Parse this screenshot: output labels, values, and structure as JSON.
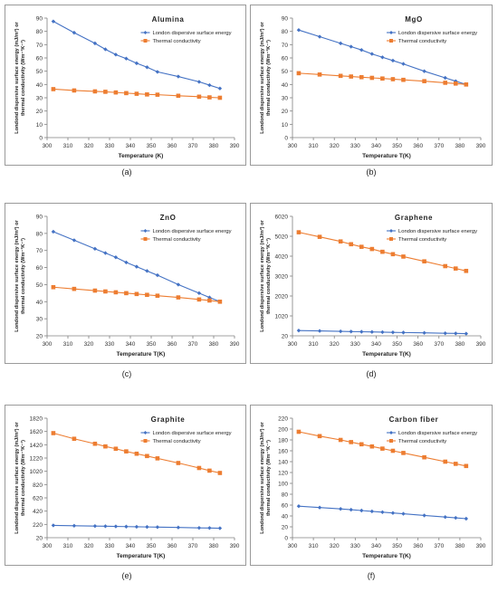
{
  "chart_data": [
    {
      "type": "line",
      "title": "Alumina",
      "caption": "(a)",
      "xlabel": "Temperature (K)",
      "ylabel": "Londond dispersive surface energy (mJ/m²) or thermal conductivity (Wm⁻¹K⁻¹)",
      "xlim": [
        300,
        390
      ],
      "xticks": [
        "300",
        "310",
        "320",
        "330",
        "340",
        "350",
        "360",
        "370",
        "380",
        "390"
      ],
      "ylim": [
        0,
        90
      ],
      "yticks": [
        "0",
        "10",
        "20",
        "30",
        "40",
        "50",
        "60",
        "70",
        "80",
        "90"
      ],
      "legend": "top-right",
      "grid": false,
      "x": [
        303,
        313,
        323,
        328,
        333,
        338,
        343,
        348,
        353,
        363,
        373,
        378,
        383
      ],
      "series": [
        {
          "name": "London dispersive surface energy",
          "color": "#4472C4",
          "marker": "diamond",
          "values": [
            87.5,
            79,
            71,
            66.5,
            62.5,
            59.5,
            56,
            53,
            49.5,
            46,
            42,
            39.5,
            37
          ]
        },
        {
          "name": "Thermal conductivity",
          "color": "#ED7D31",
          "marker": "square",
          "values": [
            36.5,
            35.5,
            34.8,
            34.5,
            34,
            33.5,
            33,
            32.5,
            32.3,
            31.5,
            30.8,
            30.3,
            30
          ]
        }
      ]
    },
    {
      "type": "line",
      "title": "MgO",
      "caption": "(b)",
      "xlabel": "Temperature T(K)",
      "ylabel": "Londond dispersive surface energy (mJ/m²) or thermal conductivity (Wm⁻¹K⁻¹)",
      "xlim": [
        300,
        390
      ],
      "xticks": [
        "300",
        "310",
        "320",
        "330",
        "340",
        "350",
        "360",
        "370",
        "380",
        "390"
      ],
      "ylim": [
        0,
        90
      ],
      "yticks": [
        "0",
        "10",
        "20",
        "30",
        "40",
        "50",
        "60",
        "70",
        "80",
        "90"
      ],
      "legend": "top-right",
      "grid": false,
      "x": [
        303,
        313,
        323,
        328,
        333,
        338,
        343,
        348,
        353,
        363,
        373,
        378,
        383
      ],
      "series": [
        {
          "name": "London dispersive surface energy",
          "color": "#4472C4",
          "marker": "diamond",
          "values": [
            81,
            76,
            71,
            68.5,
            66,
            63,
            60.5,
            58,
            55.5,
            50,
            45,
            42.5,
            40
          ]
        },
        {
          "name": "Thermal conductivity",
          "color": "#ED7D31",
          "marker": "square",
          "values": [
            48.5,
            47.5,
            46.5,
            46,
            45.5,
            45,
            44.5,
            44,
            43.5,
            42.5,
            41.3,
            40.7,
            40
          ]
        }
      ]
    },
    {
      "type": "line",
      "title": "ZnO",
      "caption": "(c)",
      "xlabel": "Temperature T(K)",
      "ylabel": "Londond dispersive surface energy (mJ/m²) or thermal conductivity (Wm⁻¹K⁻¹)",
      "xlim": [
        300,
        390
      ],
      "xticks": [
        "300",
        "310",
        "320",
        "330",
        "340",
        "350",
        "360",
        "370",
        "380",
        "390"
      ],
      "ylim": [
        20,
        90
      ],
      "yticks": [
        "20",
        "30",
        "40",
        "50",
        "60",
        "70",
        "80",
        "90"
      ],
      "legend": "top-right",
      "grid": false,
      "x": [
        303,
        313,
        323,
        328,
        333,
        338,
        343,
        348,
        353,
        363,
        373,
        378,
        383
      ],
      "series": [
        {
          "name": "London dispersive surface energy",
          "color": "#4472C4",
          "marker": "diamond",
          "values": [
            81,
            76,
            71,
            68.5,
            66,
            63,
            60.5,
            58,
            55.5,
            50,
            45,
            42.5,
            40
          ]
        },
        {
          "name": "Thermal conductivity",
          "color": "#ED7D31",
          "marker": "square",
          "values": [
            48.5,
            47.5,
            46.5,
            46,
            45.5,
            45,
            44.5,
            44,
            43.5,
            42.5,
            41.3,
            40.7,
            40
          ]
        }
      ]
    },
    {
      "type": "line",
      "title": "Graphene",
      "caption": "(d)",
      "xlabel": "Temperature T(K)",
      "ylabel": "Londond dispersive surface energy (mJ/m²) or thermal conductivity (Wm⁻¹K⁻¹)",
      "xlim": [
        300,
        390
      ],
      "xticks": [
        "300",
        "310",
        "320",
        "330",
        "340",
        "350",
        "360",
        "370",
        "380",
        "390"
      ],
      "ylim": [
        20,
        6020
      ],
      "yticks": [
        "20",
        "1020",
        "2020",
        "3020",
        "4020",
        "5020",
        "6020"
      ],
      "legend": "top-right",
      "grid": false,
      "x": [
        303,
        313,
        323,
        328,
        333,
        338,
        343,
        348,
        353,
        363,
        373,
        378,
        383
      ],
      "series": [
        {
          "name": "London dispersive surface energy",
          "color": "#4472C4",
          "marker": "diamond",
          "values": [
            285,
            265,
            245,
            235,
            225,
            215,
            205,
            195,
            185,
            170,
            150,
            140,
            130
          ]
        },
        {
          "name": "Thermal conductivity",
          "color": "#ED7D31",
          "marker": "square",
          "values": [
            5220,
            4990,
            4760,
            4620,
            4490,
            4380,
            4240,
            4120,
            4000,
            3760,
            3520,
            3400,
            3280
          ]
        }
      ]
    },
    {
      "type": "line",
      "title": "Graphite",
      "caption": "(e)",
      "xlabel": "Temperature T(K)",
      "ylabel": "Londond dispersive surface energy (mJ/m²) or thermal conductivity (Wm⁻¹K⁻¹)",
      "xlim": [
        300,
        390
      ],
      "xticks": [
        "300",
        "310",
        "320",
        "330",
        "340",
        "350",
        "360",
        "370",
        "380",
        "390"
      ],
      "ylim": [
        20,
        1820
      ],
      "yticks": [
        "20",
        "220",
        "420",
        "620",
        "820",
        "1020",
        "1220",
        "1420",
        "1620",
        "1820"
      ],
      "legend": "top-right",
      "grid": false,
      "x": [
        303,
        313,
        323,
        328,
        333,
        338,
        343,
        348,
        353,
        363,
        373,
        378,
        383
      ],
      "series": [
        {
          "name": "London dispersive surface energy",
          "color": "#4472C4",
          "marker": "diamond",
          "values": [
            205,
            200,
            195,
            193,
            190,
            187,
            184,
            182,
            179,
            174,
            168,
            166,
            163
          ]
        },
        {
          "name": "Thermal conductivity",
          "color": "#ED7D31",
          "marker": "square",
          "values": [
            1595,
            1510,
            1435,
            1395,
            1360,
            1320,
            1285,
            1250,
            1215,
            1145,
            1070,
            1030,
            995
          ]
        }
      ]
    },
    {
      "type": "line",
      "title": "Carbon fiber",
      "caption": "(f)",
      "xlabel": "Temperature T(K)",
      "ylabel": "Londond dispersive surface energy (mJ/m²) or thermal conductivity (Wm⁻¹K⁻¹)",
      "xlim": [
        300,
        390
      ],
      "xticks": [
        "300",
        "310",
        "320",
        "330",
        "340",
        "350",
        "360",
        "370",
        "380",
        "390"
      ],
      "ylim": [
        0,
        220
      ],
      "yticks": [
        "0",
        "20",
        "40",
        "60",
        "80",
        "100",
        "120",
        "140",
        "160",
        "180",
        "200",
        "220"
      ],
      "legend": "top-right",
      "grid": false,
      "x": [
        303,
        313,
        323,
        328,
        333,
        338,
        343,
        348,
        353,
        363,
        373,
        378,
        383
      ],
      "series": [
        {
          "name": "London dispersive surface energy",
          "color": "#4472C4",
          "marker": "diamond",
          "values": [
            58,
            55.5,
            53,
            51.5,
            50,
            48.5,
            47,
            45.5,
            44,
            41,
            38,
            36.5,
            35
          ]
        },
        {
          "name": "Thermal conductivity",
          "color": "#ED7D31",
          "marker": "square",
          "values": [
            195,
            187,
            180,
            176,
            172,
            168,
            164,
            160,
            156,
            148,
            140,
            136,
            132
          ]
        }
      ]
    }
  ]
}
